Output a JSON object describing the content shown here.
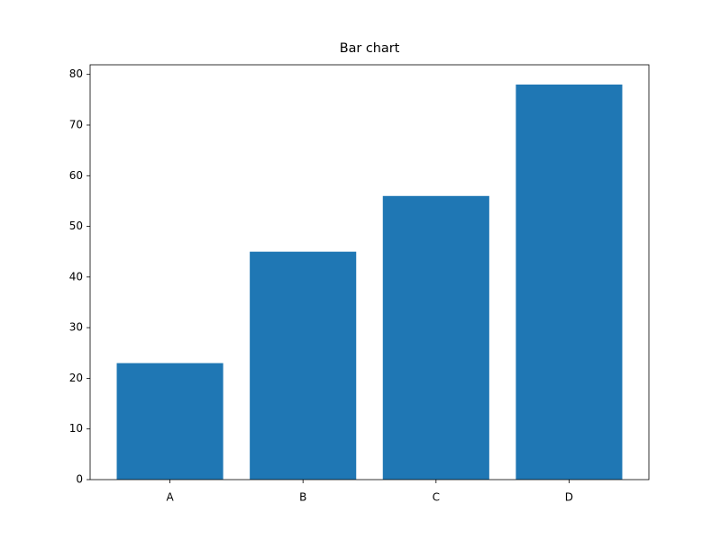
{
  "chart_data": {
    "type": "bar",
    "title": "Bar chart",
    "categories": [
      "A",
      "B",
      "C",
      "D"
    ],
    "values": [
      23,
      45,
      56,
      78
    ],
    "color": "#1f77b4",
    "ylim": [
      0,
      81.9
    ],
    "yticks": [
      0,
      10,
      20,
      30,
      40,
      50,
      60,
      70,
      80
    ],
    "grid": false
  }
}
